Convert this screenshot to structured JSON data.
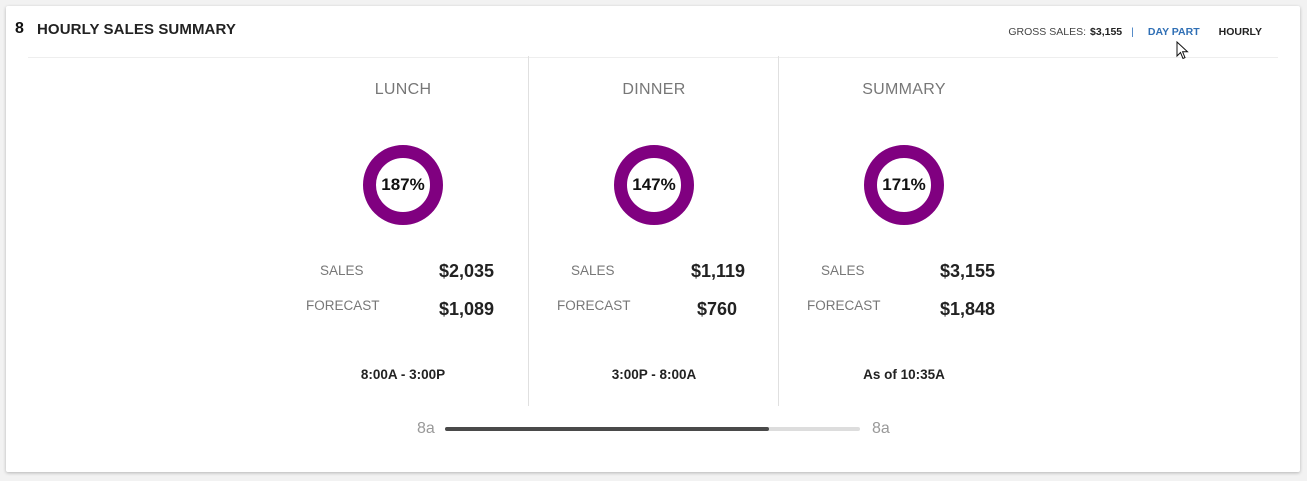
{
  "card": {
    "number": "8",
    "title": "HOURLY SALES SUMMARY"
  },
  "header": {
    "gross_sales_label": "GROSS SALES:",
    "gross_sales_value": "$3,155",
    "separator": "|",
    "tabs": [
      {
        "label": "DAY PART",
        "active": true
      },
      {
        "label": "HOURLY",
        "active": false
      }
    ]
  },
  "columns": [
    {
      "title": "LUNCH",
      "percent_label": "187%",
      "sales_label": "SALES",
      "sales_value": "$2,035",
      "forecast_label": "FORECAST",
      "forecast_value": "$1,089",
      "footer": "8:00A - 3:00P"
    },
    {
      "title": "DINNER",
      "percent_label": "147%",
      "sales_label": "SALES",
      "sales_value": "$1,119",
      "forecast_label": "FORECAST",
      "forecast_value": "$760",
      "footer": "3:00P - 8:00A"
    },
    {
      "title": "SUMMARY",
      "percent_label": "171%",
      "sales_label": "SALES",
      "sales_value": "$3,155",
      "forecast_label": "FORECAST",
      "forecast_value": "$1,848",
      "footer": "As of 10:35A"
    }
  ],
  "slider": {
    "start_label": "8a",
    "end_label": "8a",
    "progress": 0.78
  },
  "colors": {
    "donut_ring": "#800080",
    "accent_tab": "#2f6fb5"
  }
}
